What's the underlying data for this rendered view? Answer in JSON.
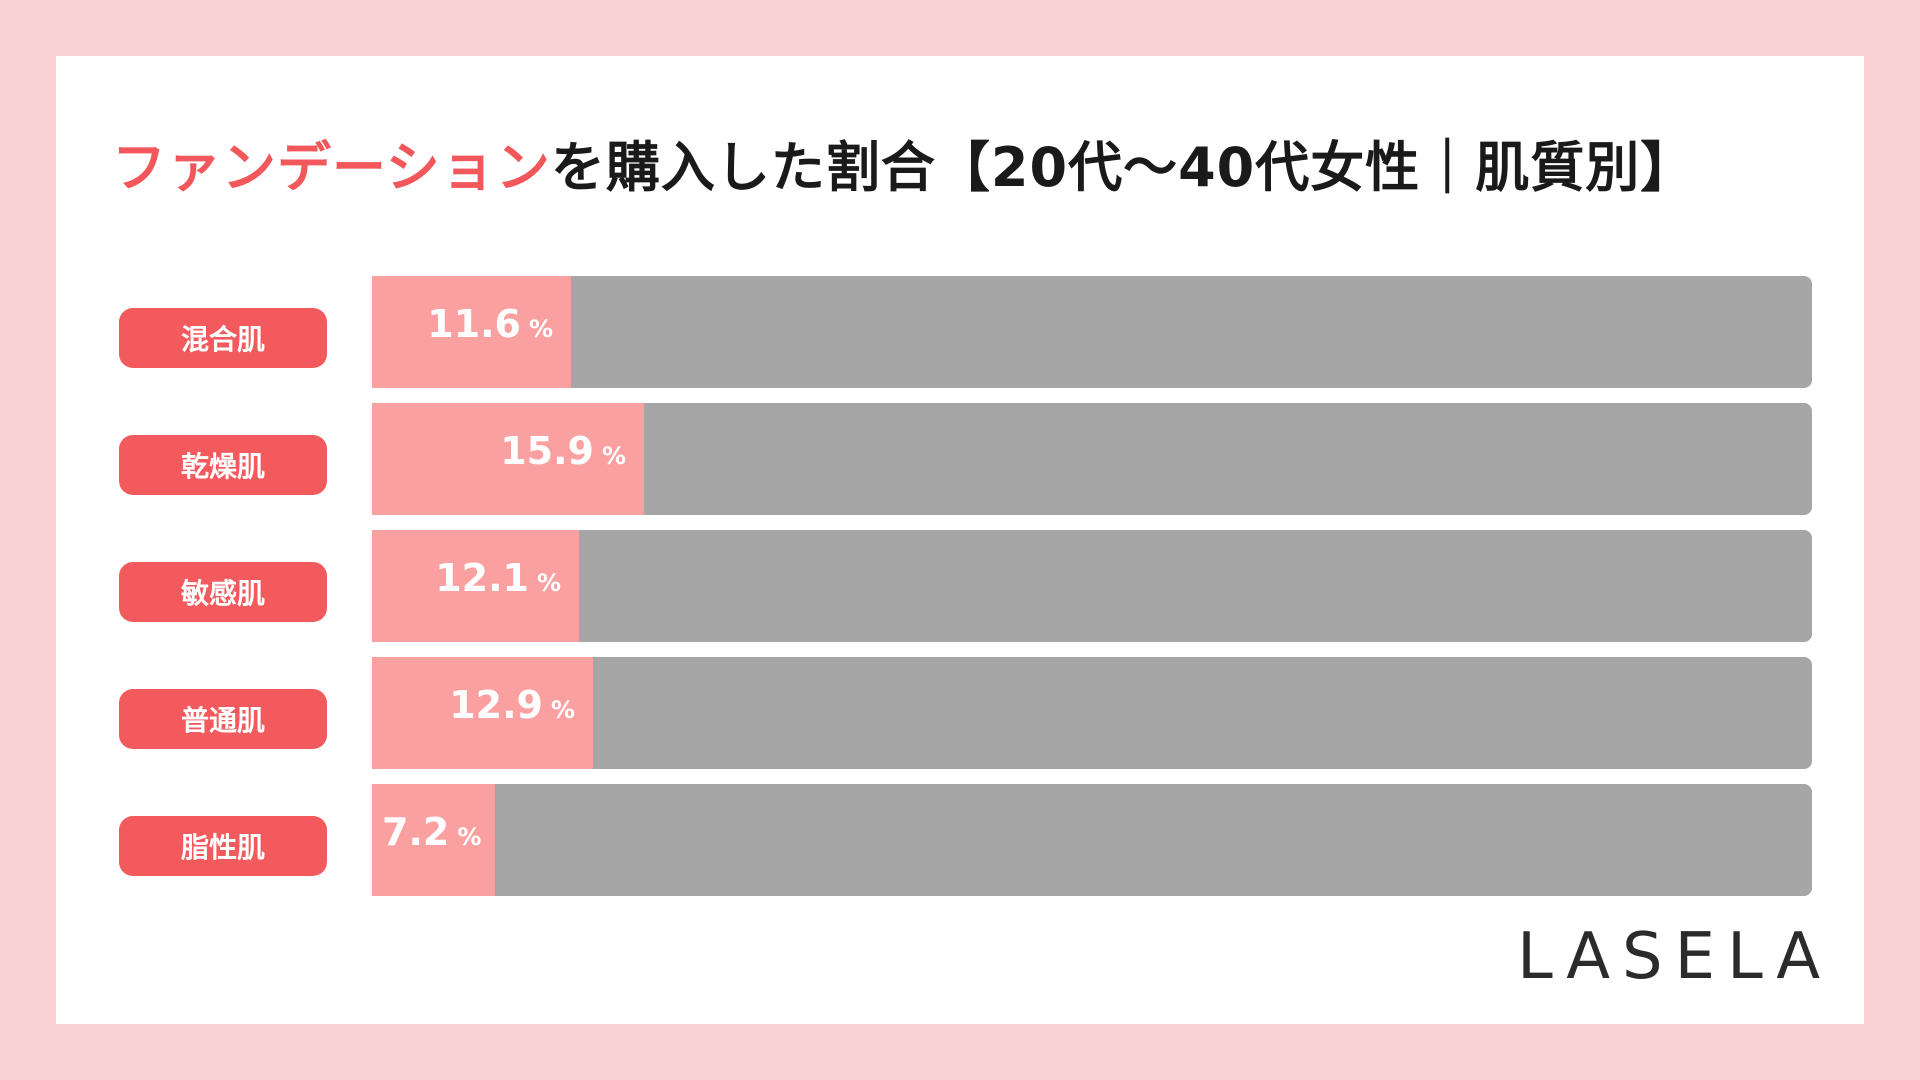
{
  "title": {
    "accent": "ファンデーション",
    "rest": "を購入した割合【20代〜40代女性｜肌質別】"
  },
  "colors": {
    "background": "#fcd3d4",
    "label_bg": "#f35a5d",
    "fill": "#fba0a1",
    "track": "#a6a6a6",
    "accent_text": "#f1575b"
  },
  "chart_data": {
    "type": "bar",
    "orientation": "horizontal",
    "title": "ファンデーションを購入した割合【20代〜40代女性｜肌質別】",
    "categories": [
      "混合肌",
      "乾燥肌",
      "敏感肌",
      "普通肌",
      "脂性肌"
    ],
    "values": [
      11.6,
      15.9,
      12.1,
      12.9,
      7.2
    ],
    "value_labels": [
      "11.6",
      "15.9",
      "12.1",
      "12.9",
      "7.2"
    ],
    "unit": "%",
    "xlim": [
      0,
      100
    ]
  },
  "logo": "LASELA"
}
